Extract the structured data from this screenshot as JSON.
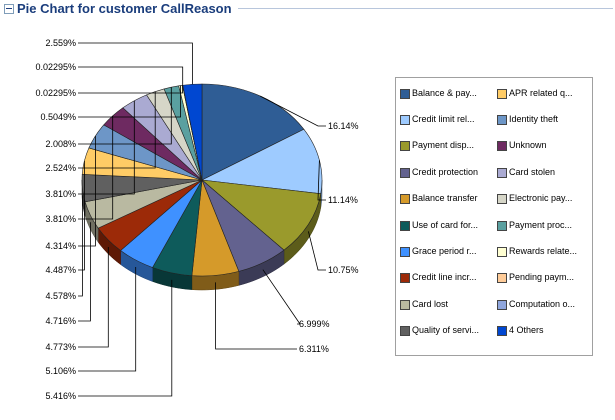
{
  "panel": {
    "title": "Pie Chart for customer CallReason"
  },
  "chart_data": {
    "type": "pie",
    "title": "Pie Chart for customer CallReason",
    "slices": [
      {
        "label": "Balance & pay...",
        "value": 16.14,
        "percent_label": "16.14%",
        "color": "#2f5d95"
      },
      {
        "label": "Credit limit rel...",
        "value": 11.14,
        "percent_label": "11.14%",
        "color": "#9ecbff"
      },
      {
        "label": "Payment disp...",
        "value": 10.75,
        "percent_label": "10.75%",
        "color": "#9a9a2c"
      },
      {
        "label": "Credit protection",
        "value": 6.999,
        "percent_label": "6.999%",
        "color": "#63628f"
      },
      {
        "label": "Balance transfer",
        "value": 6.311,
        "percent_label": "6.311%",
        "color": "#d59a2a"
      },
      {
        "label": "Use of card for...",
        "value": 5.416,
        "percent_label": "5.416%",
        "color": "#0e5b5b"
      },
      {
        "label": "Grace period r...",
        "value": 5.106,
        "percent_label": "5.106%",
        "color": "#3f91ff"
      },
      {
        "label": "Credit line incr...",
        "value": 4.773,
        "percent_label": "4.773%",
        "color": "#9c2a08"
      },
      {
        "label": "Card lost",
        "value": 4.716,
        "percent_label": "4.716%",
        "color": "#b9b9a1"
      },
      {
        "label": "Quality of servi...",
        "value": 4.578,
        "percent_label": "4.578%",
        "color": "#606060"
      },
      {
        "label": "APR related q...",
        "value": 4.487,
        "percent_label": "4.487%",
        "color": "#ffcc66"
      },
      {
        "label": "Identity theft",
        "value": 4.314,
        "percent_label": "4.314%",
        "color": "#6d96c7"
      },
      {
        "label": "Unknown",
        "value": 3.81,
        "percent_label": "3.810%",
        "color": "#6e2a61"
      },
      {
        "label": "Card stolen",
        "value": 3.81,
        "percent_label": "3.810%",
        "color": "#aaaad2"
      },
      {
        "label": "Electronic pay...",
        "value": 2.524,
        "percent_label": "2.524%",
        "color": "#d6d6c8"
      },
      {
        "label": "Payment proc...",
        "value": 2.008,
        "percent_label": "2.008%",
        "color": "#5aa0a0"
      },
      {
        "label": "Rewards relate...",
        "value": 0.5049,
        "percent_label": "0.5049%",
        "color": "#ffffd2"
      },
      {
        "label": "Pending paym...",
        "value": 0.02295,
        "percent_label": "0.02295%",
        "color": "#ffcc99"
      },
      {
        "label": "Computation o...",
        "value": 0.02295,
        "percent_label": "0.02295%",
        "color": "#8fa6dd"
      },
      {
        "label": "4 Others",
        "value": 2.559,
        "percent_label": "2.559%",
        "color": "#0047d1"
      }
    ],
    "legend": {
      "placement": "right",
      "columns": [
        [
          "Balance & pay...",
          "Credit limit rel...",
          "Payment disp...",
          "Credit protection",
          "Balance transfer",
          "Use of card for...",
          "Grace period r...",
          "Credit line incr...",
          "Card lost",
          "Quality of servi..."
        ],
        [
          "APR related q...",
          "Identity theft",
          "Unknown",
          "Card stolen",
          "Electronic pay...",
          "Payment proc...",
          "Rewards relate...",
          "Pending paym...",
          "Computation o...",
          "4 Others"
        ]
      ]
    }
  }
}
